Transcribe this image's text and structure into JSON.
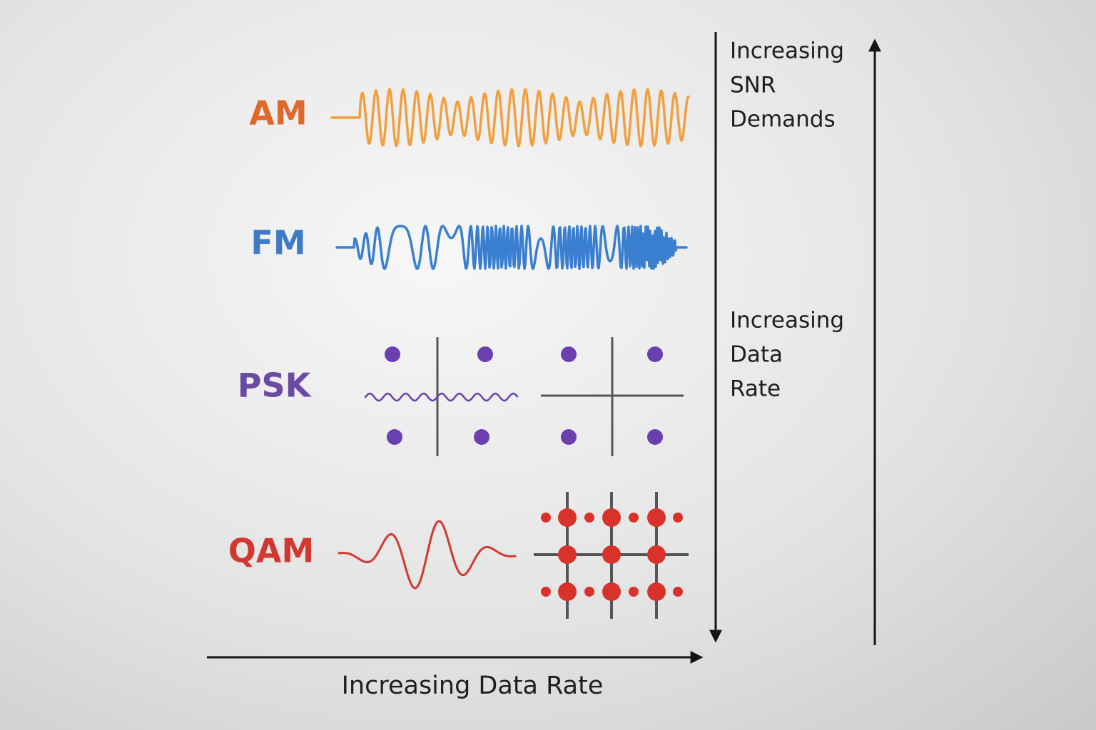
{
  "rows": [
    {
      "label": "AM"
    },
    {
      "label": "FM"
    },
    {
      "label": "PSK"
    },
    {
      "label": "QAM"
    }
  ],
  "right_annotations": [
    {
      "lines": [
        "Increasing",
        "SNR",
        "Demands"
      ]
    },
    {
      "lines": [
        "Increasing",
        "Data",
        "Rate"
      ]
    }
  ],
  "x_axis_label": "Increasing Data Rate"
}
